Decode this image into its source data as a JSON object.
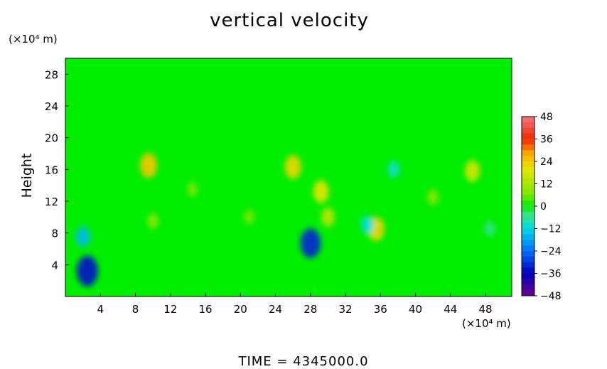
{
  "chart_data": {
    "type": "heatmap",
    "title": "vertical velocity",
    "xlabel": "",
    "ylabel": "Height",
    "x_unit": "(×10⁴ m)",
    "y_unit": "(×10⁴ m)",
    "xlim": [
      0,
      51
    ],
    "ylim": [
      0,
      30
    ],
    "x_ticks": [
      4,
      8,
      12,
      16,
      20,
      24,
      28,
      32,
      36,
      40,
      44,
      48
    ],
    "y_ticks": [
      4,
      8,
      12,
      16,
      20,
      24,
      28
    ],
    "colorbar": {
      "ticks": [
        48,
        36,
        24,
        12,
        0,
        -12,
        -24,
        -36,
        -48
      ],
      "range": [
        -48,
        48
      ]
    },
    "features": [
      {
        "x": 2.5,
        "y": 3.2,
        "value": -34
      },
      {
        "x": 2.0,
        "y": 7.5,
        "value": -16
      },
      {
        "x": 9.5,
        "y": 16.5,
        "value": 24
      },
      {
        "x": 14.5,
        "y": 13.5,
        "value": 6
      },
      {
        "x": 26.0,
        "y": 16.3,
        "value": 22
      },
      {
        "x": 28.0,
        "y": 6.7,
        "value": -32
      },
      {
        "x": 29.2,
        "y": 13.2,
        "value": 20
      },
      {
        "x": 30.0,
        "y": 10.0,
        "value": 14
      },
      {
        "x": 35.5,
        "y": 8.5,
        "value": 22
      },
      {
        "x": 34.5,
        "y": 9.0,
        "value": -12
      },
      {
        "x": 37.5,
        "y": 16.0,
        "value": -10
      },
      {
        "x": 46.5,
        "y": 15.8,
        "value": 18
      },
      {
        "x": 42.0,
        "y": 12.5,
        "value": 8
      },
      {
        "x": 10.0,
        "y": 9.5,
        "value": 8
      },
      {
        "x": 21.0,
        "y": 10.0,
        "value": 6
      },
      {
        "x": 48.5,
        "y": 8.5,
        "value": -6
      }
    ]
  },
  "footer": {
    "time_label": "TIME  =  4345000.0"
  }
}
